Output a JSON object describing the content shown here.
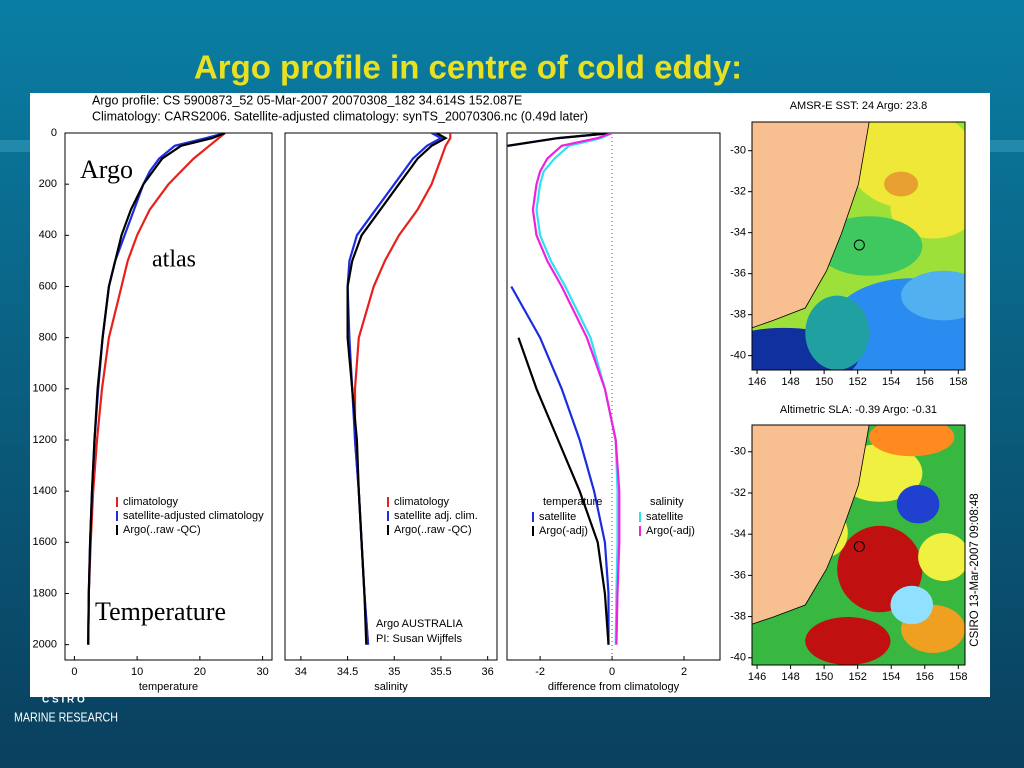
{
  "title": "Argo profile in centre of cold eddy:",
  "header": [
    "Argo profile: CS 5900873_52 05-Mar-2007 20070308_182 34.614S 152.087E",
    "Climatology: CARS2006. Satellite-adjusted climatology: synTS_20070306.nc (0.49d later)"
  ],
  "annotations": {
    "argo": "Argo",
    "atlas": "atlas",
    "temperature": "Temperature",
    "credit": [
      "Argo AUSTRALIA",
      "PI: Susan Wijffels"
    ]
  },
  "stamp": "CSIRO 13-Mar-2007 09:08:48",
  "logo": [
    "C S I R O",
    "MARINE RESEARCH"
  ],
  "chart_data": [
    {
      "type": "profile",
      "xlabel": "temperature",
      "xlim": [
        -1.5,
        31.5
      ],
      "xticks": [
        0,
        10,
        20,
        30
      ],
      "ylim": [
        0,
        2060
      ],
      "yticks": [
        0,
        200,
        400,
        600,
        800,
        1000,
        1200,
        1400,
        1600,
        1800,
        2000
      ],
      "y": [
        0,
        20,
        50,
        100,
        150,
        200,
        300,
        400,
        500,
        600,
        800,
        1000,
        1200,
        1400,
        1600,
        1800,
        2000
      ],
      "groups": [
        {
          "series": [
            {
              "name": "climatology",
              "color": "#e8201c",
              "values": [
                24,
                23,
                21.5,
                19,
                17,
                15,
                12,
                10,
                8.5,
                7.5,
                5.5,
                4.4,
                3.6,
                3,
                2.6,
                2.3,
                2.2
              ]
            },
            {
              "name": "satellite-adjusted climatology",
              "color": "#1c2ce0",
              "values": [
                24,
                21,
                16,
                13.5,
                12,
                11,
                9.5,
                8,
                6.5,
                5.5,
                4.5,
                3.8,
                3.2,
                2.8,
                2.5,
                2.3,
                2.2
              ]
            },
            {
              "name": "Argo(..raw -QC)",
              "color": "#000000",
              "values": [
                24,
                22,
                17,
                14,
                12.5,
                11,
                9,
                7.5,
                6.5,
                5.5,
                4.5,
                3.7,
                3.2,
                2.8,
                2.5,
                2.3,
                2.2
              ]
            }
          ]
        }
      ]
    },
    {
      "type": "profile",
      "xlabel": "salinity",
      "xlim": [
        33.83,
        36.1
      ],
      "xticks": [
        34,
        34.5,
        35,
        35.5,
        36
      ],
      "ylim": [
        0,
        2060
      ],
      "y": [
        0,
        20,
        50,
        100,
        150,
        200,
        300,
        400,
        500,
        600,
        800,
        1000,
        1200,
        1400,
        1600,
        1800,
        2000
      ],
      "groups": [
        {
          "series": [
            {
              "name": "climatology",
              "color": "#e8201c",
              "values": [
                35.6,
                35.6,
                35.55,
                35.5,
                35.45,
                35.4,
                35.25,
                35.05,
                34.9,
                34.78,
                34.62,
                34.58,
                34.58,
                34.62,
                34.65,
                34.68,
                34.72
              ]
            },
            {
              "name": "satellite adj. clim.",
              "color": "#1c2ce0",
              "values": [
                35.4,
                35.5,
                35.35,
                35.2,
                35.1,
                35.0,
                34.8,
                34.6,
                34.52,
                34.5,
                34.52,
                34.55,
                34.58,
                34.62,
                34.65,
                34.68,
                34.72
              ]
            },
            {
              "name": "Argo(..raw -QC)",
              "color": "#000000",
              "values": [
                35.45,
                35.55,
                35.4,
                35.25,
                35.15,
                35.05,
                34.85,
                34.65,
                34.55,
                34.5,
                34.5,
                34.55,
                34.6,
                34.62,
                34.65,
                34.68,
                34.7
              ]
            }
          ]
        }
      ]
    },
    {
      "type": "profile",
      "xlabel": "difference from climatology",
      "xlim": [
        -2.92,
        3.0
      ],
      "xticks": [
        -2,
        0,
        2
      ],
      "ylim": [
        0,
        2060
      ],
      "y": [
        0,
        20,
        50,
        100,
        150,
        200,
        300,
        400,
        500,
        600,
        800,
        1000,
        1200,
        1400,
        1600,
        1800,
        2000
      ],
      "groups": [
        {
          "title": "temperature",
          "series": [
            {
              "name": "satellite",
              "color": "#1c2ce0",
              "values": [
                0,
                -1.5,
                -2.9,
                null,
                null,
                null,
                null,
                null,
                null,
                -2.8,
                -2.0,
                -1.4,
                -0.9,
                -0.5,
                -0.2,
                -0.1,
                -0.1
              ]
            },
            {
              "name": "Argo(-adj)",
              "color": "#000000",
              "values": [
                0,
                -1.5,
                -2.9,
                null,
                null,
                null,
                null,
                null,
                null,
                null,
                -2.6,
                -2.1,
                -1.5,
                -0.9,
                -0.4,
                -0.2,
                -0.1
              ]
            }
          ]
        },
        {
          "title": "salinity",
          "series": [
            {
              "name": "satellite",
              "color": "#30e0f0",
              "values": [
                0,
                -0.3,
                -1.2,
                -1.6,
                -1.9,
                -2.0,
                -2.1,
                -2.0,
                -1.7,
                -1.3,
                -0.6,
                -0.2,
                0.1,
                0.15,
                0.15,
                0.12,
                0.1
              ]
            },
            {
              "name": "Argo(-adj)",
              "color": "#f020e0",
              "values": [
                0,
                -0.4,
                -1.4,
                -1.8,
                -2.0,
                -2.1,
                -2.2,
                -2.1,
                -1.8,
                -1.4,
                -0.7,
                -0.2,
                0.1,
                0.2,
                0.2,
                0.15,
                0.12
              ]
            }
          ]
        }
      ]
    },
    {
      "type": "map",
      "title": "AMSR-E SST: 24 Argo: 23.8",
      "xlim": [
        145.7,
        158.4
      ],
      "xticks": [
        146,
        148,
        150,
        152,
        154,
        156,
        158
      ],
      "ylim": [
        -40.7,
        -28.6
      ],
      "yticks": [
        -30,
        -32,
        -34,
        -36,
        -38,
        -40
      ],
      "marker": [
        152.1,
        -34.6
      ]
    },
    {
      "type": "map",
      "title": "Altimetric SLA: -0.39 Argo: -0.31",
      "xlim": [
        145.7,
        158.4
      ],
      "xticks": [
        146,
        148,
        150,
        152,
        154,
        156,
        158
      ],
      "ylim": [
        -40.35,
        -28.7
      ],
      "yticks": [
        -30,
        -32,
        -34,
        -36,
        -38,
        -40
      ],
      "marker": [
        152.1,
        -34.6
      ]
    }
  ]
}
